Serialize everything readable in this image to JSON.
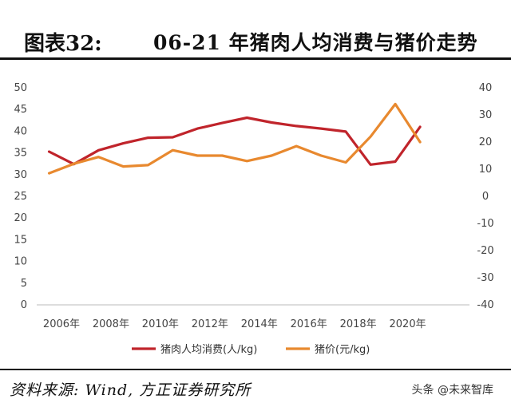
{
  "header": {
    "label": "图表32:",
    "title": "06-21 年猪肉人均消费与猪价走势"
  },
  "footer": {
    "source": "资料来源: Wind, 方正证券研究所",
    "watermark": "头条 @未来智库"
  },
  "colors": {
    "pork_consumption": "#c0242b",
    "pork_price": "#e8892f"
  },
  "chart_data": {
    "type": "line",
    "x": [
      2005.5,
      2006.5,
      2007.5,
      2008.5,
      2009.5,
      2010.5,
      2011.5,
      2012.5,
      2013.5,
      2014.5,
      2015.5,
      2016.5,
      2017.5,
      2018.5,
      2019.5,
      2020.5,
      2021.5
    ],
    "x_tick_labels": [
      "2006年",
      "2008年",
      "2010年",
      "2012年",
      "2014年",
      "2016年",
      "2018年",
      "2020年"
    ],
    "x_tick_values": [
      2006,
      2008,
      2010,
      2012,
      2014,
      2016,
      2018,
      2020
    ],
    "series": [
      {
        "name": "猪肉人均消费(人/kg)",
        "axis": "left",
        "color": "#c0242b",
        "values": [
          35.3,
          32.4,
          35.6,
          37.2,
          38.5,
          38.6,
          40.6,
          41.9,
          43.1,
          42.0,
          41.2,
          40.6,
          39.9,
          32.3,
          33.0,
          41.0,
          null
        ]
      },
      {
        "name": "猪价(元/kg)",
        "axis": "right",
        "color": "#e8892f",
        "values": [
          8.5,
          12.0,
          14.5,
          11.0,
          11.5,
          17.0,
          15.0,
          15.0,
          13.0,
          15.0,
          18.5,
          15.0,
          12.5,
          22.0,
          34.0,
          20.0,
          null
        ]
      }
    ],
    "left_axis": {
      "min": 0,
      "max": 50,
      "ticks": [
        0,
        5,
        10,
        15,
        20,
        25,
        30,
        35,
        40,
        45,
        50
      ]
    },
    "right_axis": {
      "min": -40,
      "max": 40,
      "ticks": [
        -40,
        -30,
        -20,
        -10,
        0,
        10,
        20,
        30,
        40
      ]
    },
    "grid": false,
    "legend_position": "bottom"
  }
}
